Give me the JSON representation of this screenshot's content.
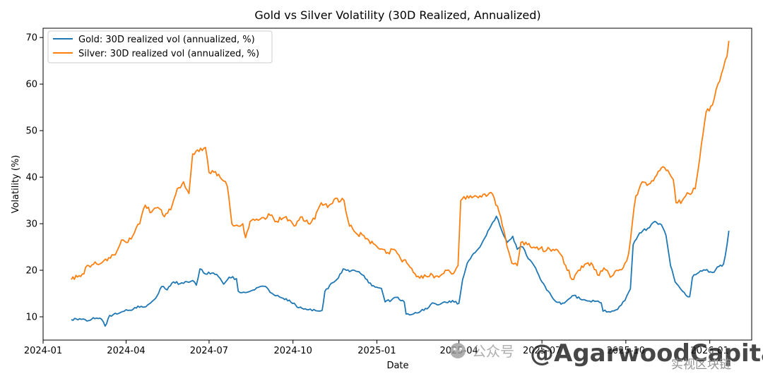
{
  "chart_data": {
    "type": "line",
    "title": "Gold vs Silver Volatility (30D Realized, Annualized)",
    "xlabel": "Date",
    "ylabel": "Volatility (%)",
    "xlim": [
      "2024-01-01",
      "2026-02-16"
    ],
    "ylim": [
      5,
      72
    ],
    "x_ticks": [
      {
        "date": "2024-01-01",
        "label": "2024-01"
      },
      {
        "date": "2024-04-01",
        "label": "2024-04"
      },
      {
        "date": "2024-07-01",
        "label": "2024-07"
      },
      {
        "date": "2024-10-01",
        "label": "2024-10"
      },
      {
        "date": "2025-01-01",
        "label": "2025-01"
      },
      {
        "date": "2025-04-01",
        "label": "2025-04"
      },
      {
        "date": "2025-07-01",
        "label": "2025-07"
      },
      {
        "date": "2025-10-01",
        "label": "2025-10"
      },
      {
        "date": "2026-01-01",
        "label": "2026-01"
      }
    ],
    "y_ticks": [
      10,
      20,
      30,
      40,
      50,
      60,
      70
    ],
    "grid": false,
    "legend_position": "upper left",
    "series": [
      {
        "name": "Gold: 30D realized vol (annualized, %)",
        "color": "#1f77b4",
        "points": [
          [
            "2024-02-01",
            9.4
          ],
          [
            "2024-02-10",
            9.6
          ],
          [
            "2024-02-18",
            9.1
          ],
          [
            "2024-02-25",
            9.8
          ],
          [
            "2024-03-05",
            9.5
          ],
          [
            "2024-03-09",
            8.0
          ],
          [
            "2024-03-14",
            10.3
          ],
          [
            "2024-03-22",
            10.6
          ],
          [
            "2024-03-30",
            11.2
          ],
          [
            "2024-04-07",
            11.4
          ],
          [
            "2024-04-14",
            12.3
          ],
          [
            "2024-04-21",
            12.1
          ],
          [
            "2024-04-28",
            13.0
          ],
          [
            "2024-05-05",
            14.5
          ],
          [
            "2024-05-10",
            16.5
          ],
          [
            "2024-05-16",
            15.8
          ],
          [
            "2024-05-23",
            17.5
          ],
          [
            "2024-05-30",
            17.1
          ],
          [
            "2024-06-07",
            17.5
          ],
          [
            "2024-06-13",
            17.8
          ],
          [
            "2024-06-17",
            16.8
          ],
          [
            "2024-06-21",
            20.3
          ],
          [
            "2024-06-27",
            19.2
          ],
          [
            "2024-07-04",
            19.4
          ],
          [
            "2024-07-11",
            18.7
          ],
          [
            "2024-07-17",
            17.0
          ],
          [
            "2024-07-23",
            18.5
          ],
          [
            "2024-07-31",
            18.2
          ],
          [
            "2024-08-02",
            15.5
          ],
          [
            "2024-08-12",
            15.3
          ],
          [
            "2024-08-20",
            15.8
          ],
          [
            "2024-08-28",
            16.6
          ],
          [
            "2024-09-04",
            15.9
          ],
          [
            "2024-09-12",
            14.5
          ],
          [
            "2024-09-20",
            14.0
          ],
          [
            "2024-09-27",
            13.6
          ],
          [
            "2024-10-04",
            12.5
          ],
          [
            "2024-10-11",
            11.8
          ],
          [
            "2024-10-18",
            11.5
          ],
          [
            "2024-10-26",
            11.3
          ],
          [
            "2024-11-02",
            11.4
          ],
          [
            "2024-11-05",
            15.5
          ],
          [
            "2024-11-12",
            17.2
          ],
          [
            "2024-11-18",
            18.0
          ],
          [
            "2024-11-25",
            20.3
          ],
          [
            "2024-12-02",
            19.7
          ],
          [
            "2024-12-09",
            19.8
          ],
          [
            "2024-12-16",
            19.0
          ],
          [
            "2024-12-23",
            17.3
          ],
          [
            "2024-12-30",
            16.4
          ],
          [
            "2025-01-06",
            16.1
          ],
          [
            "2025-01-10",
            13.2
          ],
          [
            "2025-01-17",
            13.6
          ],
          [
            "2025-01-24",
            14.2
          ],
          [
            "2025-01-31",
            13.2
          ],
          [
            "2025-02-02",
            10.6
          ],
          [
            "2025-02-10",
            10.6
          ],
          [
            "2025-02-18",
            11.2
          ],
          [
            "2025-02-25",
            11.7
          ],
          [
            "2025-03-03",
            13.0
          ],
          [
            "2025-03-10",
            12.6
          ],
          [
            "2025-03-18",
            13.1
          ],
          [
            "2025-03-25",
            13.5
          ],
          [
            "2025-04-01",
            12.9
          ],
          [
            "2025-04-05",
            18.0
          ],
          [
            "2025-04-10",
            21.5
          ],
          [
            "2025-04-17",
            23.6
          ],
          [
            "2025-04-24",
            25.0
          ],
          [
            "2025-05-01",
            27.5
          ],
          [
            "2025-05-06",
            29.5
          ],
          [
            "2025-05-12",
            31.6
          ],
          [
            "2025-05-18",
            28.5
          ],
          [
            "2025-05-24",
            26.0
          ],
          [
            "2025-05-30",
            27.3
          ],
          [
            "2025-06-04",
            24.5
          ],
          [
            "2025-06-10",
            25.0
          ],
          [
            "2025-06-16",
            22.5
          ],
          [
            "2025-06-24",
            20.5
          ],
          [
            "2025-07-01",
            17.5
          ],
          [
            "2025-07-08",
            15.5
          ],
          [
            "2025-07-15",
            13.5
          ],
          [
            "2025-07-22",
            12.7
          ],
          [
            "2025-07-29",
            13.6
          ],
          [
            "2025-08-05",
            14.6
          ],
          [
            "2025-08-12",
            13.8
          ],
          [
            "2025-08-20",
            13.4
          ],
          [
            "2025-08-28",
            13.3
          ],
          [
            "2025-09-04",
            13.0
          ],
          [
            "2025-09-06",
            11.2
          ],
          [
            "2025-09-14",
            11.0
          ],
          [
            "2025-09-22",
            11.6
          ],
          [
            "2025-09-30",
            13.5
          ],
          [
            "2025-10-06",
            16.0
          ],
          [
            "2025-10-09",
            25.5
          ],
          [
            "2025-10-16",
            28.0
          ],
          [
            "2025-10-25",
            29.0
          ],
          [
            "2025-11-02",
            30.5
          ],
          [
            "2025-11-09",
            29.8
          ],
          [
            "2025-11-14",
            27.5
          ],
          [
            "2025-11-19",
            21.0
          ],
          [
            "2025-11-24",
            17.5
          ],
          [
            "2025-11-30",
            16.0
          ],
          [
            "2025-12-06",
            14.6
          ],
          [
            "2025-12-10",
            14.3
          ],
          [
            "2025-12-13",
            18.5
          ],
          [
            "2025-12-20",
            19.5
          ],
          [
            "2025-12-27",
            20.0
          ],
          [
            "2026-01-04",
            19.5
          ],
          [
            "2026-01-11",
            20.8
          ],
          [
            "2026-01-16",
            21.3
          ],
          [
            "2026-01-20",
            25.5
          ],
          [
            "2026-01-22",
            28.5
          ]
        ]
      },
      {
        "name": "Silver: 30D realized vol (annualized, %)",
        "color": "#ff7f0e",
        "points": [
          [
            "2024-02-01",
            18.0
          ],
          [
            "2024-02-06",
            18.9
          ],
          [
            "2024-02-13",
            19.2
          ],
          [
            "2024-02-20",
            21.0
          ],
          [
            "2024-02-27",
            21.8
          ],
          [
            "2024-03-06",
            21.7
          ],
          [
            "2024-03-13",
            22.7
          ],
          [
            "2024-03-20",
            23.3
          ],
          [
            "2024-03-27",
            26.5
          ],
          [
            "2024-04-03",
            26.0
          ],
          [
            "2024-04-10",
            28.0
          ],
          [
            "2024-04-16",
            30.0
          ],
          [
            "2024-04-22",
            34.0
          ],
          [
            "2024-04-29",
            32.5
          ],
          [
            "2024-05-06",
            33.5
          ],
          [
            "2024-05-13",
            31.5
          ],
          [
            "2024-05-20",
            33.0
          ],
          [
            "2024-05-27",
            37.5
          ],
          [
            "2024-06-03",
            39.0
          ],
          [
            "2024-06-09",
            36.5
          ],
          [
            "2024-06-13",
            45.0
          ],
          [
            "2024-06-20",
            45.5
          ],
          [
            "2024-06-27",
            46.4
          ],
          [
            "2024-07-01",
            41.0
          ],
          [
            "2024-07-08",
            41.2
          ],
          [
            "2024-07-15",
            39.5
          ],
          [
            "2024-07-21",
            38.0
          ],
          [
            "2024-07-26",
            30.0
          ],
          [
            "2024-08-02",
            29.5
          ],
          [
            "2024-08-07",
            30.0
          ],
          [
            "2024-08-10",
            27.0
          ],
          [
            "2024-08-15",
            30.5
          ],
          [
            "2024-08-22",
            31.0
          ],
          [
            "2024-08-30",
            31.3
          ],
          [
            "2024-09-06",
            31.8
          ],
          [
            "2024-09-13",
            30.5
          ],
          [
            "2024-09-20",
            31.2
          ],
          [
            "2024-09-27",
            30.8
          ],
          [
            "2024-10-04",
            29.6
          ],
          [
            "2024-10-11",
            31.5
          ],
          [
            "2024-10-18",
            30.0
          ],
          [
            "2024-10-25",
            31.0
          ],
          [
            "2024-11-01",
            34.5
          ],
          [
            "2024-11-08",
            33.5
          ],
          [
            "2024-11-15",
            35.2
          ],
          [
            "2024-11-22",
            34.8
          ],
          [
            "2024-11-26",
            35.0
          ],
          [
            "2024-12-02",
            29.5
          ],
          [
            "2024-12-09",
            28.0
          ],
          [
            "2024-12-16",
            27.6
          ],
          [
            "2024-12-23",
            26.5
          ],
          [
            "2024-12-30",
            25.5
          ],
          [
            "2025-01-06",
            24.6
          ],
          [
            "2025-01-13",
            23.8
          ],
          [
            "2025-01-20",
            24.5
          ],
          [
            "2025-01-27",
            22.5
          ],
          [
            "2025-02-03",
            21.5
          ],
          [
            "2025-02-10",
            19.5
          ],
          [
            "2025-02-17",
            18.3
          ],
          [
            "2025-02-24",
            18.7
          ],
          [
            "2025-03-03",
            19.0
          ],
          [
            "2025-03-10",
            18.5
          ],
          [
            "2025-03-17",
            20.0
          ],
          [
            "2025-03-24",
            19.2
          ],
          [
            "2025-03-31",
            21.0
          ],
          [
            "2025-04-03",
            35.0
          ],
          [
            "2025-04-10",
            36.0
          ],
          [
            "2025-04-17",
            35.8
          ],
          [
            "2025-04-24",
            36.0
          ],
          [
            "2025-05-01",
            35.9
          ],
          [
            "2025-05-08",
            36.3
          ],
          [
            "2025-05-15",
            32.5
          ],
          [
            "2025-05-22",
            27.0
          ],
          [
            "2025-05-29",
            21.5
          ],
          [
            "2025-06-04",
            21.0
          ],
          [
            "2025-06-08",
            26.0
          ],
          [
            "2025-06-15",
            25.5
          ],
          [
            "2025-06-22",
            25.0
          ],
          [
            "2025-06-29",
            24.7
          ],
          [
            "2025-07-06",
            24.3
          ],
          [
            "2025-07-13",
            24.5
          ],
          [
            "2025-07-20",
            23.8
          ],
          [
            "2025-07-27",
            21.0
          ],
          [
            "2025-08-03",
            18.0
          ],
          [
            "2025-08-10",
            20.0
          ],
          [
            "2025-08-17",
            21.3
          ],
          [
            "2025-08-24",
            21.6
          ],
          [
            "2025-08-31",
            19.0
          ],
          [
            "2025-09-07",
            20.5
          ],
          [
            "2025-09-14",
            18.5
          ],
          [
            "2025-09-21",
            20.0
          ],
          [
            "2025-09-28",
            20.5
          ],
          [
            "2025-10-04",
            23.5
          ],
          [
            "2025-10-08",
            30.0
          ],
          [
            "2025-10-12",
            36.0
          ],
          [
            "2025-10-19",
            39.0
          ],
          [
            "2025-10-26",
            38.5
          ],
          [
            "2025-11-02",
            40.0
          ],
          [
            "2025-11-09",
            42.0
          ],
          [
            "2025-11-16",
            41.5
          ],
          [
            "2025-11-22",
            39.5
          ],
          [
            "2025-11-25",
            34.5
          ],
          [
            "2025-12-02",
            35.0
          ],
          [
            "2025-12-09",
            36.5
          ],
          [
            "2025-12-16",
            37.5
          ],
          [
            "2025-12-21",
            44.0
          ],
          [
            "2025-12-28",
            54.0
          ],
          [
            "2026-01-04",
            55.5
          ],
          [
            "2026-01-10",
            60.0
          ],
          [
            "2026-01-16",
            63.5
          ],
          [
            "2026-01-20",
            66.0
          ],
          [
            "2026-01-22",
            69.3
          ]
        ]
      }
    ]
  },
  "watermark": {
    "left_text": "公众号",
    "main_text": "@AgarwoodCapital",
    "right_text": "实视区块链"
  }
}
